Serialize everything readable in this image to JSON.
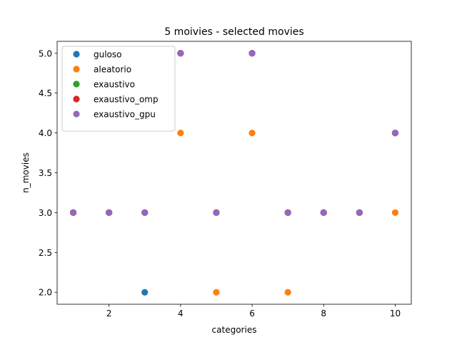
{
  "chart_data": {
    "type": "scatter",
    "title": "5 moivies - selected movies",
    "xlabel": "categories",
    "ylabel": "n_movies",
    "xlim": [
      0.55,
      10.45
    ],
    "ylim": [
      1.85,
      5.15
    ],
    "xticks": [
      2,
      4,
      6,
      8,
      10
    ],
    "xtick_labels": [
      "2",
      "4",
      "6",
      "8",
      "10"
    ],
    "yticks": [
      2.0,
      2.5,
      3.0,
      3.5,
      4.0,
      4.5,
      5.0
    ],
    "ytick_labels": [
      "2.0",
      "2.5",
      "3.0",
      "3.5",
      "4.0",
      "4.5",
      "5.0"
    ],
    "grid": false,
    "legend_position": "upper-left",
    "series": [
      {
        "name": "guloso",
        "color": "#1f77b4",
        "x": [
          1,
          2,
          3,
          4,
          5,
          6,
          7,
          8,
          9,
          10
        ],
        "y": [
          3,
          3,
          2,
          5,
          3,
          5,
          3,
          3,
          3,
          4
        ]
      },
      {
        "name": "aleatorio",
        "color": "#ff7f0e",
        "x": [
          1,
          2,
          3,
          4,
          5,
          6,
          7,
          8,
          9,
          10
        ],
        "y": [
          3,
          3,
          3,
          4,
          2,
          4,
          2,
          3,
          3,
          3
        ]
      },
      {
        "name": "exaustivo",
        "color": "#2ca02c",
        "x": [
          1,
          2,
          3,
          4,
          5,
          6,
          7,
          8,
          9,
          10
        ],
        "y": [
          3,
          3,
          3,
          5,
          3,
          5,
          3,
          3,
          3,
          4
        ]
      },
      {
        "name": "exaustivo_omp",
        "color": "#d62728",
        "x": [
          1,
          2,
          3,
          4,
          5,
          6,
          7,
          8,
          9,
          10
        ],
        "y": [
          3,
          3,
          3,
          5,
          3,
          5,
          3,
          3,
          3,
          4
        ]
      },
      {
        "name": "exaustivo_gpu",
        "color": "#9467bd",
        "x": [
          1,
          2,
          3,
          4,
          5,
          6,
          7,
          8,
          9,
          10
        ],
        "y": [
          3,
          3,
          3,
          5,
          3,
          5,
          3,
          3,
          3,
          4
        ]
      }
    ]
  }
}
